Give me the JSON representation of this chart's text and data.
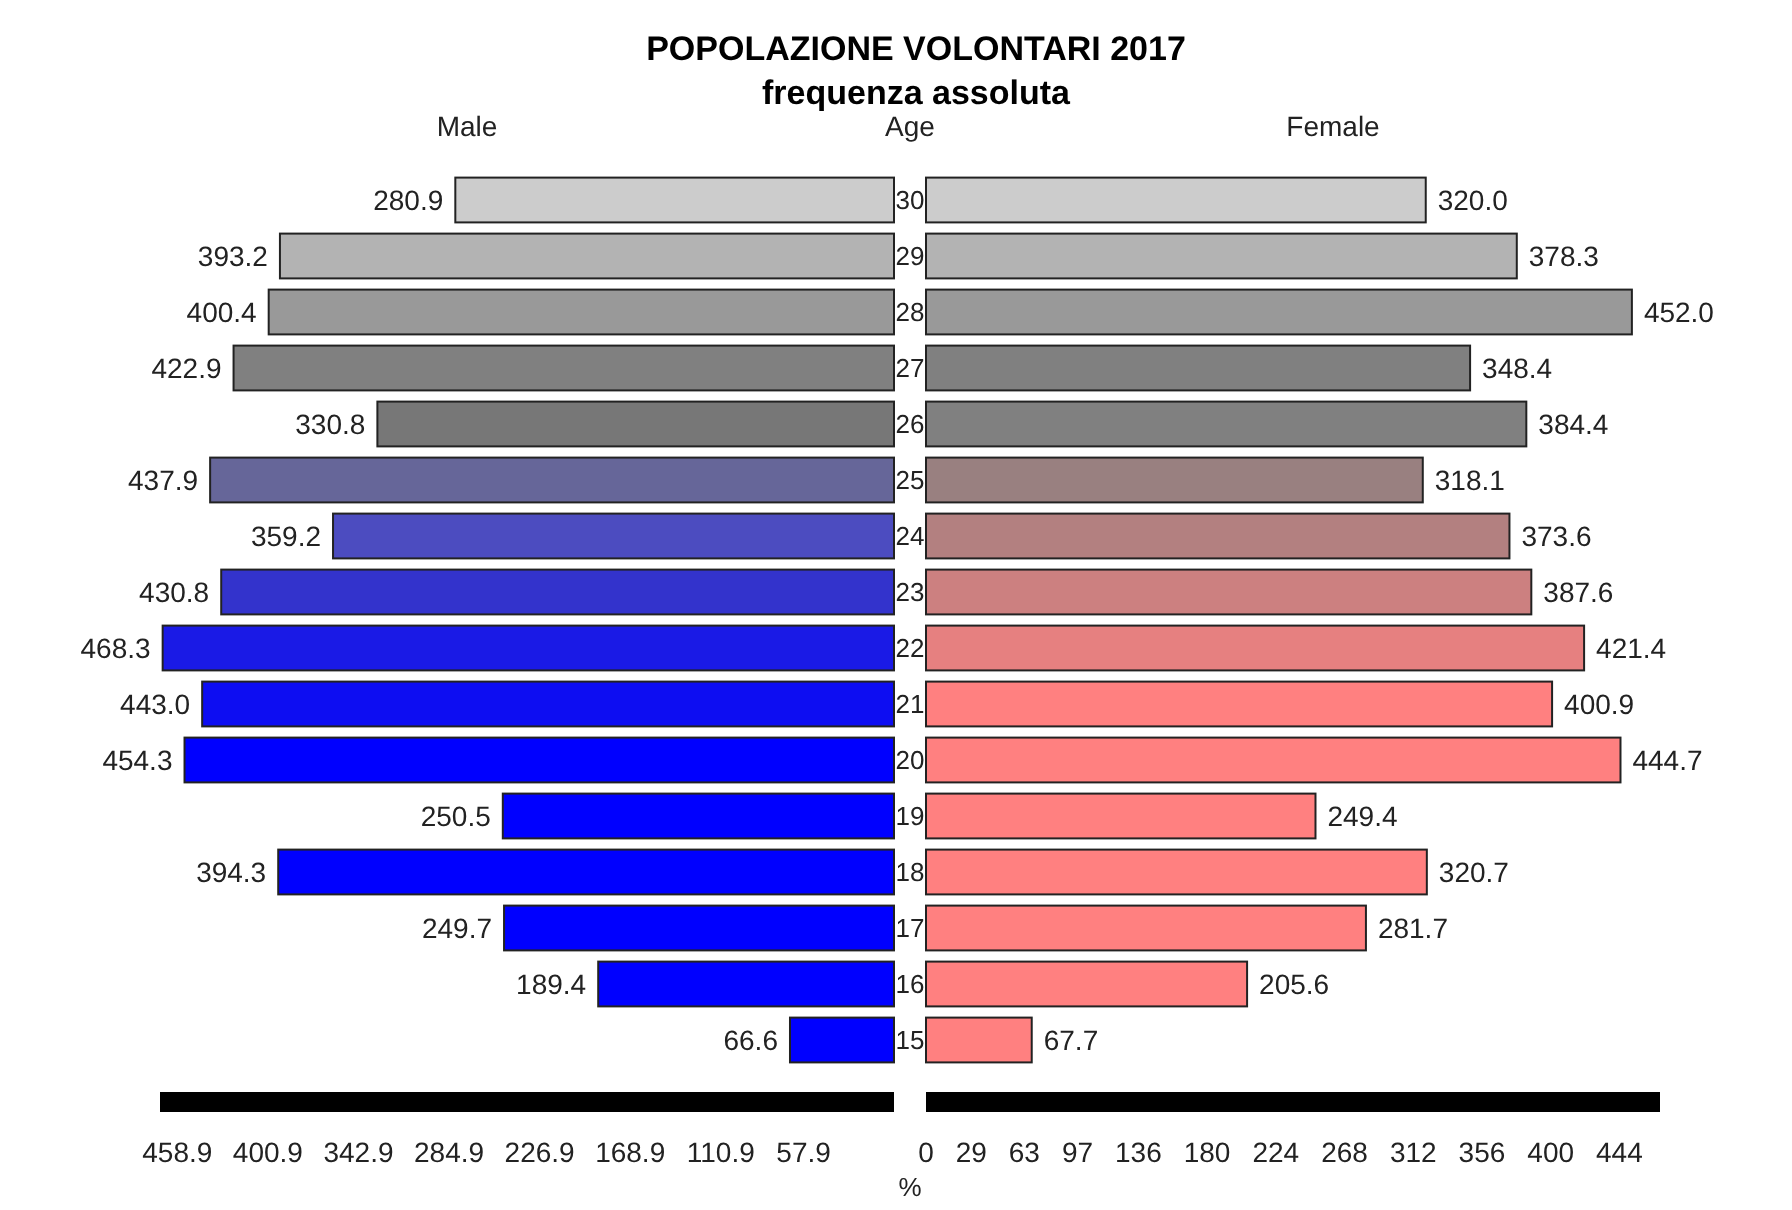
{
  "chart_data": [
    {
      "type": "bar",
      "orientation": "horizontal",
      "title": "POPOLAZIONE VOLONTARI 2017",
      "subtitle": "frequenza assoluta",
      "xlabel": "%",
      "tick_labels": "x",
      "categories": [
        "30",
        "29",
        "28",
        "27",
        "26",
        "25",
        "24",
        "23",
        "22",
        "21",
        "20",
        "19",
        "18",
        "17",
        "16",
        "15"
      ],
      "series": [
        {
          "name": "Male",
          "values": [
            280.9,
            393.2,
            400.4,
            422.9,
            330.8,
            437.9,
            359.2,
            430.8,
            468.3,
            443.0,
            454.3,
            250.5,
            394.3,
            249.7,
            189.4,
            66.6
          ],
          "value_labels": [
            "280.9",
            "393.2",
            "400.4",
            "422.9",
            "330.8",
            "437.9",
            "359.2",
            "430.8",
            "468.3",
            "443.0",
            "454.3",
            "250.5",
            "394.3",
            "249.7",
            "189.4",
            "66.6"
          ],
          "colors": [
            "#cccccc",
            "#b3b3b3",
            "#999999",
            "#808080",
            "#777777",
            "#666699",
            "#4c4cc0",
            "#3333cc",
            "#1a1ae6",
            "#0d0df2",
            "#0000ff",
            "#0000ff",
            "#0000ff",
            "#0000ff",
            "#0000ff",
            "#0000ff"
          ]
        }
      ],
      "xlim": [
        470,
        0
      ],
      "xticks": [
        458.9,
        400.9,
        342.9,
        284.9,
        226.9,
        168.9,
        110.9,
        57.9
      ]
    },
    {
      "type": "bar",
      "orientation": "horizontal",
      "ylabel": "Age",
      "categories": [
        "30",
        "29",
        "28",
        "27",
        "26",
        "25",
        "24",
        "23",
        "22",
        "21",
        "20",
        "19",
        "18",
        "17",
        "16",
        "15"
      ],
      "series": [
        {
          "name": "Female",
          "values": [
            320.0,
            378.3,
            452.0,
            348.4,
            384.4,
            318.1,
            373.6,
            387.6,
            421.4,
            400.9,
            444.7,
            249.4,
            320.7,
            281.7,
            205.6,
            67.7
          ],
          "value_labels": [
            "320.0",
            "378.3",
            "452.0",
            "348.4",
            "384.4",
            "318.1",
            "373.6",
            "387.6",
            "421.4",
            "400.9",
            "444.7",
            "249.4",
            "320.7",
            "281.7",
            "205.6",
            "67.7"
          ],
          "colors": [
            "#cccccc",
            "#b3b3b3",
            "#999999",
            "#808080",
            "#808080",
            "#998080",
            "#b38080",
            "#cc8080",
            "#e68080",
            "#ff8080",
            "#ff8080",
            "#ff8080",
            "#ff8080",
            "#ff8080",
            "#ff8080",
            "#ff8080"
          ]
        }
      ],
      "xlim": [
        0,
        470
      ],
      "xticks": [
        0,
        29,
        63,
        97,
        136,
        180,
        224,
        268,
        312,
        356,
        400,
        444
      ]
    }
  ]
}
